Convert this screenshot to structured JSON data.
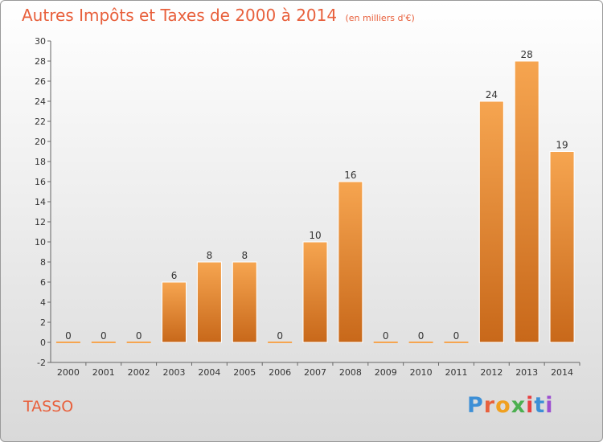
{
  "title": "Autres Impôts et Taxes de 2000 à 2014",
  "unit_label": "(en milliers d'€)",
  "commune": "TASSO",
  "logo": {
    "text": "Proxiti",
    "letter_colors": [
      "#3d8fd6",
      "#e8603c",
      "#f0a020",
      "#4caf50",
      "#e84040",
      "#3d8fd6",
      "#9c4fd0"
    ]
  },
  "colors": {
    "bar_light": "#f6a550",
    "bar_dark": "#c8681a",
    "title": "#e8603c"
  },
  "chart_data": {
    "type": "bar",
    "title": "Autres Impôts et Taxes de 2000 à 2014",
    "categories": [
      "2000",
      "2001",
      "2002",
      "2003",
      "2004",
      "2005",
      "2006",
      "2007",
      "2008",
      "2009",
      "2010",
      "2011",
      "2012",
      "2013",
      "2014"
    ],
    "values": [
      0,
      0,
      0,
      6,
      8,
      8,
      0,
      10,
      16,
      0,
      0,
      0,
      24,
      28,
      19
    ],
    "value_labels": [
      "0",
      "0",
      "0",
      "6",
      "8",
      "8",
      "0",
      "10",
      "16",
      "0",
      "0",
      "0",
      "24",
      "28",
      "19"
    ],
    "ylim": [
      -2,
      30
    ],
    "yticks": [
      "-2",
      "0",
      "2",
      "4",
      "6",
      "8",
      "10",
      "12",
      "14",
      "16",
      "18",
      "20",
      "22",
      "24",
      "26",
      "28",
      "30"
    ],
    "xlabel": "",
    "ylabel": "",
    "grid": false,
    "legend": "none"
  }
}
